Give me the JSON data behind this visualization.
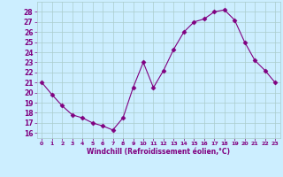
{
  "x": [
    0,
    1,
    2,
    3,
    4,
    5,
    6,
    7,
    8,
    9,
    10,
    11,
    12,
    13,
    14,
    15,
    16,
    17,
    18,
    19,
    20,
    21,
    22,
    23
  ],
  "y": [
    21,
    19.8,
    18.7,
    17.8,
    17.5,
    17.0,
    16.7,
    16.3,
    17.5,
    20.5,
    23.0,
    20.5,
    22.2,
    24.3,
    26.0,
    27.0,
    27.3,
    28.0,
    28.2,
    27.2,
    25.0,
    23.2,
    22.2,
    21.0
  ],
  "xlabel": "Windchill (Refroidissement éolien,°C)",
  "xlim": [
    -0.5,
    23.5
  ],
  "ylim": [
    15.5,
    29.0
  ],
  "yticks": [
    16,
    17,
    18,
    19,
    20,
    21,
    22,
    23,
    24,
    25,
    26,
    27,
    28
  ],
  "xticks": [
    0,
    1,
    2,
    3,
    4,
    5,
    6,
    7,
    8,
    9,
    10,
    11,
    12,
    13,
    14,
    15,
    16,
    17,
    18,
    19,
    20,
    21,
    22,
    23
  ],
  "line_color": "#800080",
  "marker": "D",
  "marker_size": 2.5,
  "bg_color": "#cceeff",
  "grid_color": "#aacccc",
  "tick_color": "#800080",
  "label_color": "#800080"
}
